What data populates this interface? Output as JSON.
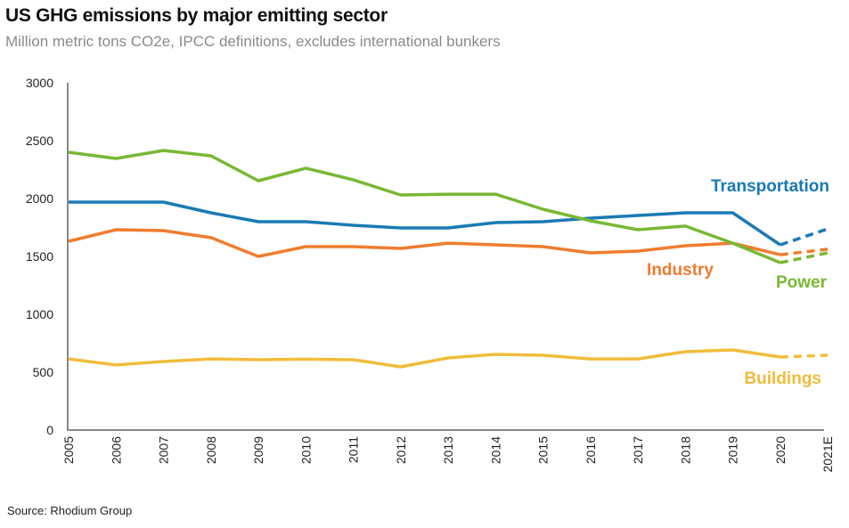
{
  "header": {
    "title": "US GHG emissions by major emitting sector",
    "subtitle": "Million metric tons CO2e, IPCC definitions, excludes international bunkers"
  },
  "footer": {
    "source": "Source: Rhodium Group"
  },
  "chart_data": {
    "type": "line",
    "title": "US GHG emissions by major emitting sector",
    "subtitle": "Million metric tons CO2e, IPCC definitions, excludes international bunkers",
    "xlabel": "",
    "ylabel": "",
    "ylim": [
      0,
      3000
    ],
    "yticks": [
      0,
      500,
      1000,
      1500,
      2000,
      2500,
      3000
    ],
    "grid": false,
    "legend": "inline labels at line ends",
    "x": [
      "2005",
      "2006",
      "2007",
      "2008",
      "2009",
      "2010",
      "2011",
      "2012",
      "2013",
      "2014",
      "2015",
      "2016",
      "2017",
      "2018",
      "2019",
      "2020",
      "2021E"
    ],
    "estimated_from_index": 15,
    "series": [
      {
        "name": "Transportation",
        "color": "#1a7ab5",
        "values": [
          1969,
          1969,
          1969,
          1877,
          1800,
          1800,
          1769,
          1746,
          1746,
          1792,
          1800,
          1831,
          1854,
          1877,
          1877,
          1600,
          1738
        ]
      },
      {
        "name": "Industry",
        "color": "#ee7d2e",
        "values": [
          1631,
          1731,
          1723,
          1662,
          1500,
          1585,
          1585,
          1569,
          1615,
          1600,
          1585,
          1531,
          1546,
          1592,
          1615,
          1515,
          1562
        ]
      },
      {
        "name": "Power",
        "color": "#78b833",
        "values": [
          2400,
          2346,
          2415,
          2369,
          2154,
          2262,
          2162,
          2031,
          2038,
          2038,
          1908,
          1808,
          1731,
          1762,
          1615,
          1446,
          1531
        ]
      },
      {
        "name": "Buildings",
        "color": "#f0bc3b",
        "values": [
          615,
          562,
          592,
          615,
          608,
          612,
          608,
          546,
          623,
          654,
          646,
          615,
          615,
          677,
          692,
          631,
          646
        ]
      }
    ]
  }
}
